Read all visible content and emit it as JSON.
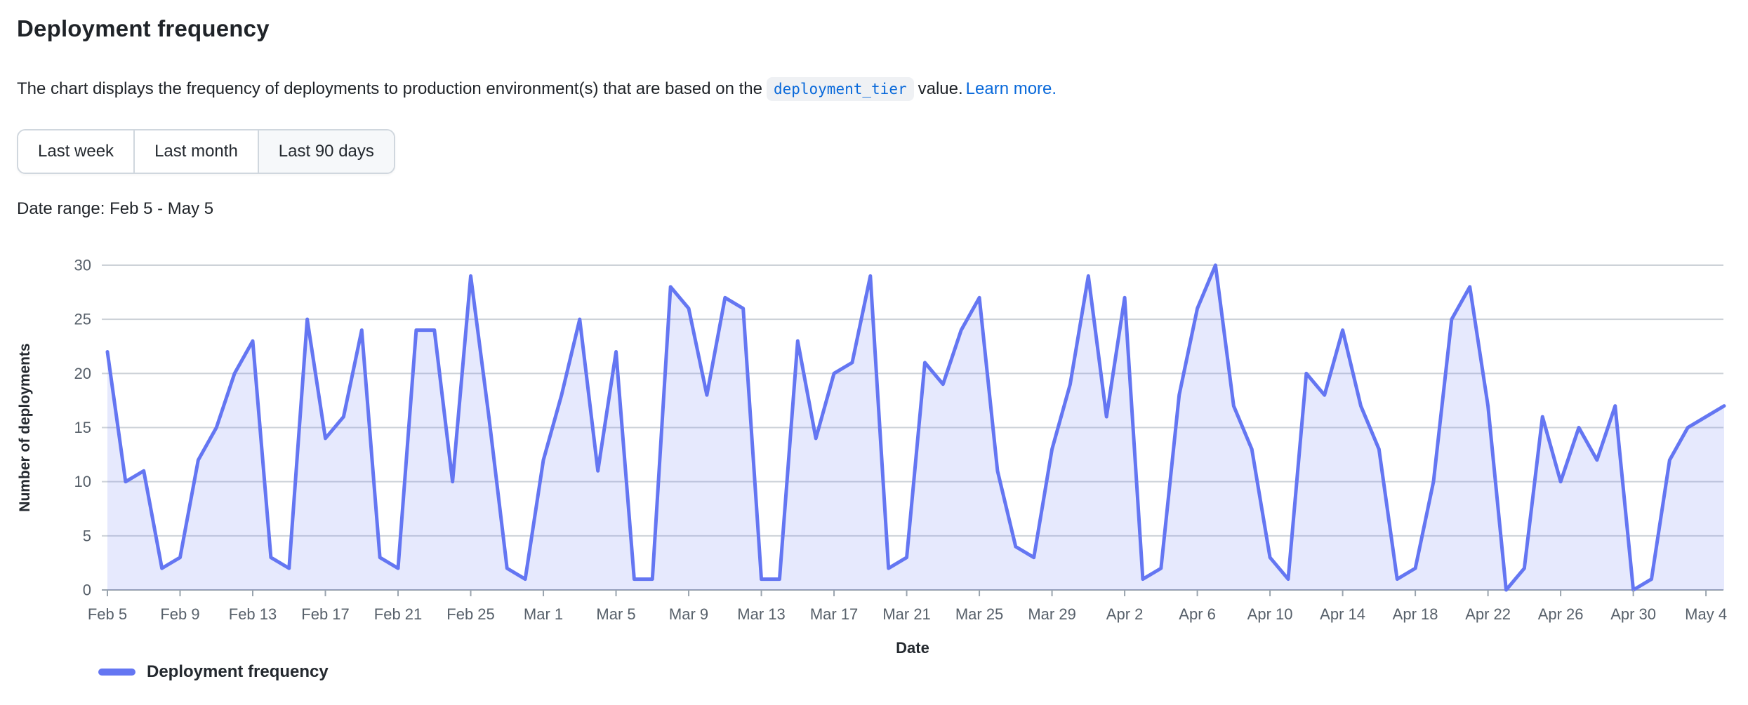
{
  "page": {
    "title": "Deployment frequency",
    "description_prefix": "The chart displays the frequency of deployments to production environment(s) that are based on the",
    "code_chip": "deployment_tier",
    "description_suffix": "value.",
    "learn_more_label": "Learn more.",
    "date_range_label": "Date range: Feb 5 - May 5"
  },
  "time_filters": {
    "options": [
      {
        "label": "Last week",
        "selected": false
      },
      {
        "label": "Last month",
        "selected": false
      },
      {
        "label": "Last 90 days",
        "selected": true
      }
    ]
  },
  "legend": {
    "label": "Deployment frequency"
  },
  "colors": {
    "accent": "#6476f2",
    "area_fill": "rgba(100,118,242,0.16)",
    "grid": "#cdd2d8",
    "axis": "#9aa4ae",
    "tick_text": "#57606a",
    "label_text": "#24292f",
    "link": "#0969da"
  },
  "chart_data": {
    "type": "area",
    "series_name": "Deployment frequency",
    "xlabel": "Date",
    "ylabel": "Number of deployments",
    "ylim": [
      0,
      30
    ],
    "yticks": [
      0,
      5,
      10,
      15,
      20,
      25,
      30
    ],
    "xtick_every": 4,
    "grid": true,
    "legend_position": "bottom-left",
    "x": [
      "Feb 5",
      "Feb 6",
      "Feb 7",
      "Feb 8",
      "Feb 9",
      "Feb 10",
      "Feb 11",
      "Feb 12",
      "Feb 13",
      "Feb 14",
      "Feb 15",
      "Feb 16",
      "Feb 17",
      "Feb 18",
      "Feb 19",
      "Feb 20",
      "Feb 21",
      "Feb 22",
      "Feb 23",
      "Feb 24",
      "Feb 25",
      "Feb 26",
      "Feb 27",
      "Feb 28",
      "Mar 1",
      "Mar 2",
      "Mar 3",
      "Mar 4",
      "Mar 5",
      "Mar 6",
      "Mar 7",
      "Mar 8",
      "Mar 9",
      "Mar 10",
      "Mar 11",
      "Mar 12",
      "Mar 13",
      "Mar 14",
      "Mar 15",
      "Mar 16",
      "Mar 17",
      "Mar 18",
      "Mar 19",
      "Mar 20",
      "Mar 21",
      "Mar 22",
      "Mar 23",
      "Mar 24",
      "Mar 25",
      "Mar 26",
      "Mar 27",
      "Mar 28",
      "Mar 29",
      "Mar 30",
      "Mar 31",
      "Apr 1",
      "Apr 2",
      "Apr 3",
      "Apr 4",
      "Apr 5",
      "Apr 6",
      "Apr 7",
      "Apr 8",
      "Apr 9",
      "Apr 10",
      "Apr 11",
      "Apr 12",
      "Apr 13",
      "Apr 14",
      "Apr 15",
      "Apr 16",
      "Apr 17",
      "Apr 18",
      "Apr 19",
      "Apr 20",
      "Apr 21",
      "Apr 22",
      "Apr 23",
      "Apr 24",
      "Apr 25",
      "Apr 26",
      "Apr 27",
      "Apr 28",
      "Apr 29",
      "Apr 30",
      "May 1",
      "May 2",
      "May 3",
      "May 4",
      "May 5"
    ],
    "values": [
      22,
      10,
      11,
      2,
      3,
      12,
      15,
      20,
      23,
      3,
      2,
      25,
      14,
      16,
      24,
      3,
      2,
      24,
      24,
      10,
      29,
      16,
      2,
      1,
      12,
      18,
      25,
      11,
      22,
      1,
      1,
      28,
      26,
      18,
      27,
      26,
      1,
      1,
      23,
      14,
      20,
      21,
      29,
      2,
      3,
      21,
      19,
      24,
      27,
      11,
      4,
      3,
      13,
      19,
      29,
      16,
      27,
      1,
      2,
      18,
      26,
      30,
      17,
      13,
      3,
      1,
      20,
      18,
      24,
      17,
      13,
      1,
      2,
      10,
      25,
      28,
      17,
      0,
      2,
      16,
      10,
      15,
      12,
      17,
      0,
      1,
      12,
      15,
      16,
      17
    ]
  }
}
